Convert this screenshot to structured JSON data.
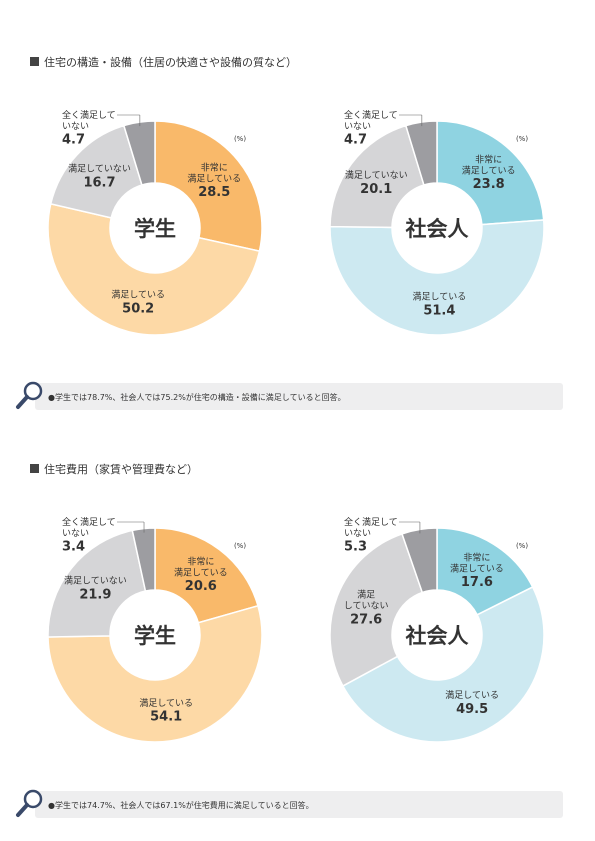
{
  "sections": [
    {
      "title": "住宅の構造・設備（住居の快適さや設備の質など）",
      "note": "●学生では78.7%、社会人では75.2%が住宅の構造・設備に満足していると回答。"
    },
    {
      "title": "住宅費用（家賃や管理費など）",
      "note": "●学生では74.7%、社会人では67.1%が住宅費用に満足していると回答。"
    }
  ],
  "chart_data": [
    {
      "type": "donut",
      "center_label": "学生",
      "unit": "(%)",
      "categories": [
        "非常に\n満足している",
        "満足している",
        "満足していない",
        "全く満足して\nいない"
      ],
      "values": [
        28.5,
        50.2,
        16.7,
        4.7
      ],
      "colors": [
        "#f9b96a",
        "#fdd9a6",
        "#d5d5d7",
        "#9d9da1"
      ]
    },
    {
      "type": "donut",
      "center_label": "社会人",
      "unit": "(%)",
      "categories": [
        "非常に\n満足している",
        "満足している",
        "満足していない",
        "全く満足して\nいない"
      ],
      "values": [
        23.8,
        51.4,
        20.1,
        4.7
      ],
      "colors": [
        "#8fd3e1",
        "#cde9f1",
        "#d5d5d7",
        "#9d9da1"
      ]
    },
    {
      "type": "donut",
      "center_label": "学生",
      "unit": "(%)",
      "categories": [
        "非常に\n満足している",
        "満足している",
        "満足していない",
        "全く満足して\nいない"
      ],
      "values": [
        20.6,
        54.1,
        21.9,
        3.4
      ],
      "colors": [
        "#f9b96a",
        "#fdd9a6",
        "#d5d5d7",
        "#9d9da1"
      ]
    },
    {
      "type": "donut",
      "center_label": "社会人",
      "unit": "(%)",
      "categories": [
        "非常に\n満足している",
        "満足している",
        "満足\nしていない",
        "全く満足して\nいない"
      ],
      "values": [
        17.6,
        49.5,
        27.6,
        5.3
      ],
      "colors": [
        "#8fd3e1",
        "#cde9f1",
        "#d5d5d7",
        "#9d9da1"
      ]
    }
  ]
}
